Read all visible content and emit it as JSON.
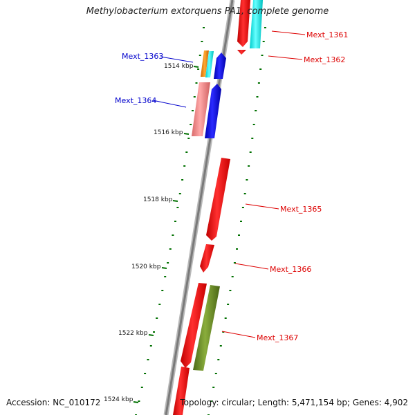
{
  "title": "Methylobacterium extorquens PA1, complete genome",
  "footer": {
    "accession": "Accession: NC_010172",
    "topology": "Topology: circular; Length: 5,471,154 bp; Genes: 4,902"
  },
  "colors": {
    "backbone": "#808080",
    "ticks": "#007000",
    "forward_label": "#dd0000",
    "reverse_label": "#0000cc",
    "red": "#ff0000",
    "cyan": "#00ffff",
    "blue": "#0000ff",
    "orange": "#ff8800",
    "salmon": "#f08080",
    "olive": "#6b8e23"
  },
  "kbp_labels": [
    "1514 kbp",
    "1516 kbp",
    "1518 kbp",
    "1520 kbp",
    "1522 kbp",
    "1524 kbp"
  ],
  "genes": [
    {
      "name": "Mext_1361",
      "strand": "forward",
      "color": "red"
    },
    {
      "name": "Mext_1362",
      "strand": "forward",
      "color": "red"
    },
    {
      "name": "Mext_1363",
      "strand": "reverse",
      "color": "blue"
    },
    {
      "name": "Mext_1364",
      "strand": "reverse",
      "color": "blue"
    },
    {
      "name": "Mext_1365",
      "strand": "forward",
      "color": "red"
    },
    {
      "name": "Mext_1366",
      "strand": "forward",
      "color": "red"
    },
    {
      "name": "Mext_1367",
      "strand": "forward",
      "color": "red"
    }
  ]
}
